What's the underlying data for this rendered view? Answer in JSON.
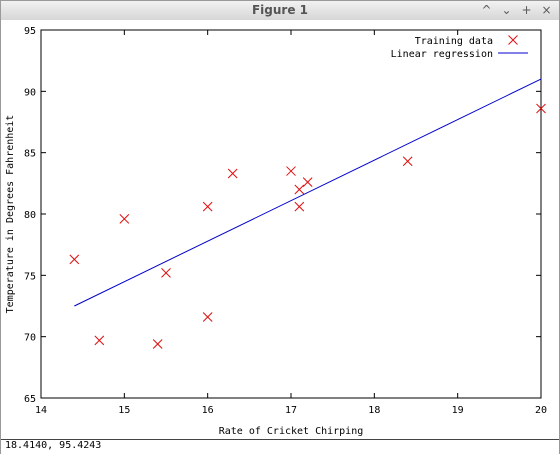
{
  "window": {
    "title": "Figure 1",
    "buttons": {
      "minimize_up": "^",
      "minimize_down": "⌄",
      "maximize": "+",
      "close": "×"
    }
  },
  "status": {
    "coordinates": "18.4140,  95.4243"
  },
  "chart_data": {
    "type": "scatter",
    "xlabel": "Rate of Cricket Chirping",
    "ylabel": "Temperature in Degrees Fahrenheit",
    "xlim": [
      14,
      20
    ],
    "ylim": [
      65,
      95
    ],
    "xticks": [
      14,
      15,
      16,
      17,
      18,
      19,
      20
    ],
    "yticks": [
      65,
      70,
      75,
      80,
      85,
      90,
      95
    ],
    "grid": false,
    "legend": "top-right",
    "series": [
      {
        "name": "Training data",
        "kind": "scatter",
        "marker": "x",
        "color": "#e01010",
        "points": [
          [
            14.4,
            76.3
          ],
          [
            14.7,
            69.7
          ],
          [
            15.0,
            79.6
          ],
          [
            15.4,
            69.4
          ],
          [
            15.5,
            75.2
          ],
          [
            16.0,
            80.6
          ],
          [
            16.0,
            71.6
          ],
          [
            16.3,
            83.3
          ],
          [
            17.0,
            83.5
          ],
          [
            17.1,
            82.0
          ],
          [
            17.1,
            80.6
          ],
          [
            17.2,
            82.6
          ],
          [
            18.4,
            84.3
          ],
          [
            20.0,
            88.6
          ]
        ]
      },
      {
        "name": "Linear regression",
        "kind": "line",
        "color": "#0000cc",
        "points": [
          [
            14.4,
            72.5
          ],
          [
            20.0,
            91.0
          ]
        ]
      }
    ]
  }
}
